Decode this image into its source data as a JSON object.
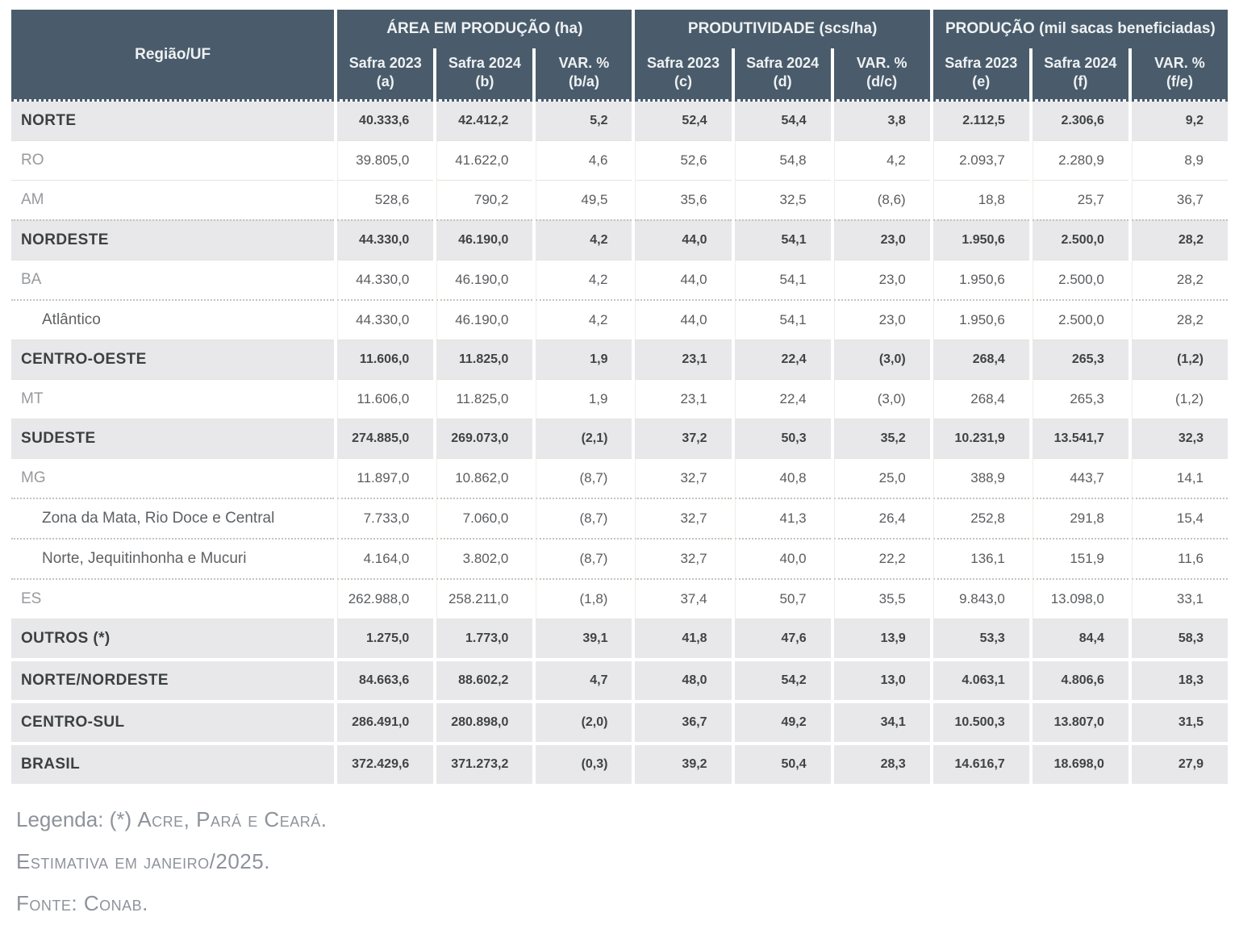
{
  "header": {
    "region_label": "Região/UF",
    "groups": [
      {
        "label": "ÁREA EM PRODUÇÃO (ha)"
      },
      {
        "label": "PRODUTIVIDADE (scs/ha)"
      },
      {
        "label": "PRODUÇÃO (mil sacas beneficiadas)"
      }
    ],
    "subs": [
      {
        "line1": "Safra 2023",
        "line2": "(a)"
      },
      {
        "line1": "Safra 2024",
        "line2": "(b)"
      },
      {
        "line1": "VAR. %",
        "line2": "(b/a)"
      },
      {
        "line1": "Safra 2023",
        "line2": "(c)"
      },
      {
        "line1": "Safra 2024",
        "line2": "(d)"
      },
      {
        "line1": "VAR. %",
        "line2": "(d/c)"
      },
      {
        "line1": "Safra 2023",
        "line2": "(e)"
      },
      {
        "line1": "Safra 2024",
        "line2": "(f)"
      },
      {
        "line1": "VAR. %",
        "line2": "(f/e)"
      }
    ]
  },
  "rows": [
    {
      "label": "NORTE",
      "type": "region",
      "sep": "none",
      "values": [
        "40.333,6",
        "42.412,2",
        "5,2",
        "52,4",
        "54,4",
        "3,8",
        "2.112,5",
        "2.306,6",
        "9,2"
      ]
    },
    {
      "label": "RO",
      "type": "state",
      "sep": "solid",
      "values": [
        "39.805,0",
        "41.622,0",
        "4,6",
        "52,6",
        "54,8",
        "4,2",
        "2.093,7",
        "2.280,9",
        "8,9"
      ]
    },
    {
      "label": "AM",
      "type": "state",
      "sep": "solid",
      "values": [
        "528,6",
        "790,2",
        "49,5",
        "35,6",
        "32,5",
        "(8,6)",
        "18,8",
        "25,7",
        "36,7"
      ]
    },
    {
      "label": "NORDESTE",
      "type": "region",
      "sep": "dotted",
      "values": [
        "44.330,0",
        "46.190,0",
        "4,2",
        "44,0",
        "54,1",
        "23,0",
        "1.950,6",
        "2.500,0",
        "28,2"
      ]
    },
    {
      "label": "BA",
      "type": "state",
      "sep": "solid",
      "values": [
        "44.330,0",
        "46.190,0",
        "4,2",
        "44,0",
        "54,1",
        "23,0",
        "1.950,6",
        "2.500,0",
        "28,2"
      ]
    },
    {
      "label": "Atlântico",
      "type": "sub",
      "sep": "dotted",
      "values": [
        "44.330,0",
        "46.190,0",
        "4,2",
        "44,0",
        "54,1",
        "23,0",
        "1.950,6",
        "2.500,0",
        "28,2"
      ]
    },
    {
      "label": "CENTRO-OESTE",
      "type": "region",
      "sep": "solid",
      "values": [
        "11.606,0",
        "11.825,0",
        "1,9",
        "23,1",
        "22,4",
        "(3,0)",
        "268,4",
        "265,3",
        "(1,2)"
      ]
    },
    {
      "label": "MT",
      "type": "state",
      "sep": "solid",
      "values": [
        "11.606,0",
        "11.825,0",
        "1,9",
        "23,1",
        "22,4",
        "(3,0)",
        "268,4",
        "265,3",
        "(1,2)"
      ]
    },
    {
      "label": "SUDESTE",
      "type": "region",
      "sep": "solid",
      "values": [
        "274.885,0",
        "269.073,0",
        "(2,1)",
        "37,2",
        "50,3",
        "35,2",
        "10.231,9",
        "13.541,7",
        "32,3"
      ]
    },
    {
      "label": "MG",
      "type": "state",
      "sep": "solid",
      "values": [
        "11.897,0",
        "10.862,0",
        "(8,7)",
        "32,7",
        "40,8",
        "25,0",
        "388,9",
        "443,7",
        "14,1"
      ]
    },
    {
      "label": "Zona da Mata, Rio Doce e Central",
      "type": "sub",
      "sep": "dotted",
      "values": [
        "7.733,0",
        "7.060,0",
        "(8,7)",
        "32,7",
        "41,3",
        "26,4",
        "252,8",
        "291,8",
        "15,4"
      ]
    },
    {
      "label": "Norte, Jequitinhonha e Mucuri",
      "type": "sub",
      "sep": "dotted",
      "values": [
        "4.164,0",
        "3.802,0",
        "(8,7)",
        "32,7",
        "40,0",
        "22,2",
        "136,1",
        "151,9",
        "11,6"
      ]
    },
    {
      "label": "ES",
      "type": "state",
      "sep": "dotted",
      "values": [
        "262.988,0",
        "258.211,0",
        "(1,8)",
        "37,4",
        "50,7",
        "35,5",
        "9.843,0",
        "13.098,0",
        "33,1"
      ]
    },
    {
      "label": "OUTROS (*)",
      "type": "region",
      "sep": "solid",
      "values": [
        "1.275,0",
        "1.773,0",
        "39,1",
        "41,8",
        "47,6",
        "13,9",
        "53,3",
        "84,4",
        "58,3"
      ]
    },
    {
      "label": "NORTE/NORDESTE",
      "type": "region",
      "sep": "gap",
      "values": [
        "84.663,6",
        "88.602,2",
        "4,7",
        "48,0",
        "54,2",
        "13,0",
        "4.063,1",
        "4.806,6",
        "18,3"
      ]
    },
    {
      "label": "CENTRO-SUL",
      "type": "region",
      "sep": "gap",
      "values": [
        "286.491,0",
        "280.898,0",
        "(2,0)",
        "36,7",
        "49,2",
        "34,1",
        "10.500,3",
        "13.807,0",
        "31,5"
      ]
    },
    {
      "label": "BRASIL",
      "type": "region",
      "sep": "gap",
      "values": [
        "372.429,6",
        "371.273,2",
        "(0,3)",
        "39,2",
        "50,4",
        "28,3",
        "14.616,7",
        "18.698,0",
        "27,9"
      ]
    }
  ],
  "footer": {
    "legend_prefix": "Legenda: (*) ",
    "legend_caps": "Acre, Pará e Ceará.",
    "estimate": "Estimativa em janeiro/2025.",
    "source": "Fonte: Conab."
  },
  "colors": {
    "header_bg": "#4a5c6b",
    "header_text": "#eef1f3",
    "region_row_bg": "#e8e8ea",
    "region_text": "#3d4043",
    "state_label_text": "#97999d",
    "footer_text": "#8e939b"
  }
}
